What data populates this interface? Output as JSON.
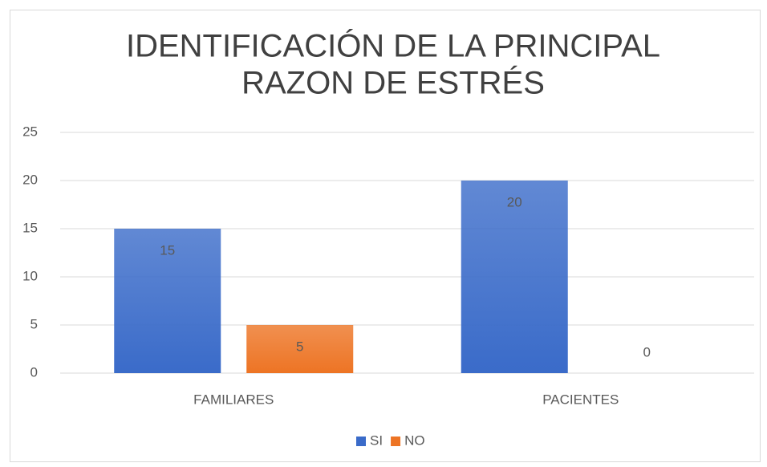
{
  "chart_data": {
    "type": "bar",
    "title": [
      "IDENTIFICACIÓN DE LA PRINCIPAL",
      "RAZON DE ESTRÉS"
    ],
    "categories": [
      "FAMILIARES",
      "PACIENTES"
    ],
    "series": [
      {
        "name": "SI",
        "color": "#3a6bc9",
        "values": [
          15,
          20
        ]
      },
      {
        "name": "NO",
        "color": "#ed7424",
        "values": [
          5,
          0
        ]
      }
    ],
    "ylim": [
      0,
      25
    ],
    "yticks": [
      0,
      5,
      10,
      15,
      20,
      25
    ],
    "grid": true,
    "legend": "bottom"
  }
}
